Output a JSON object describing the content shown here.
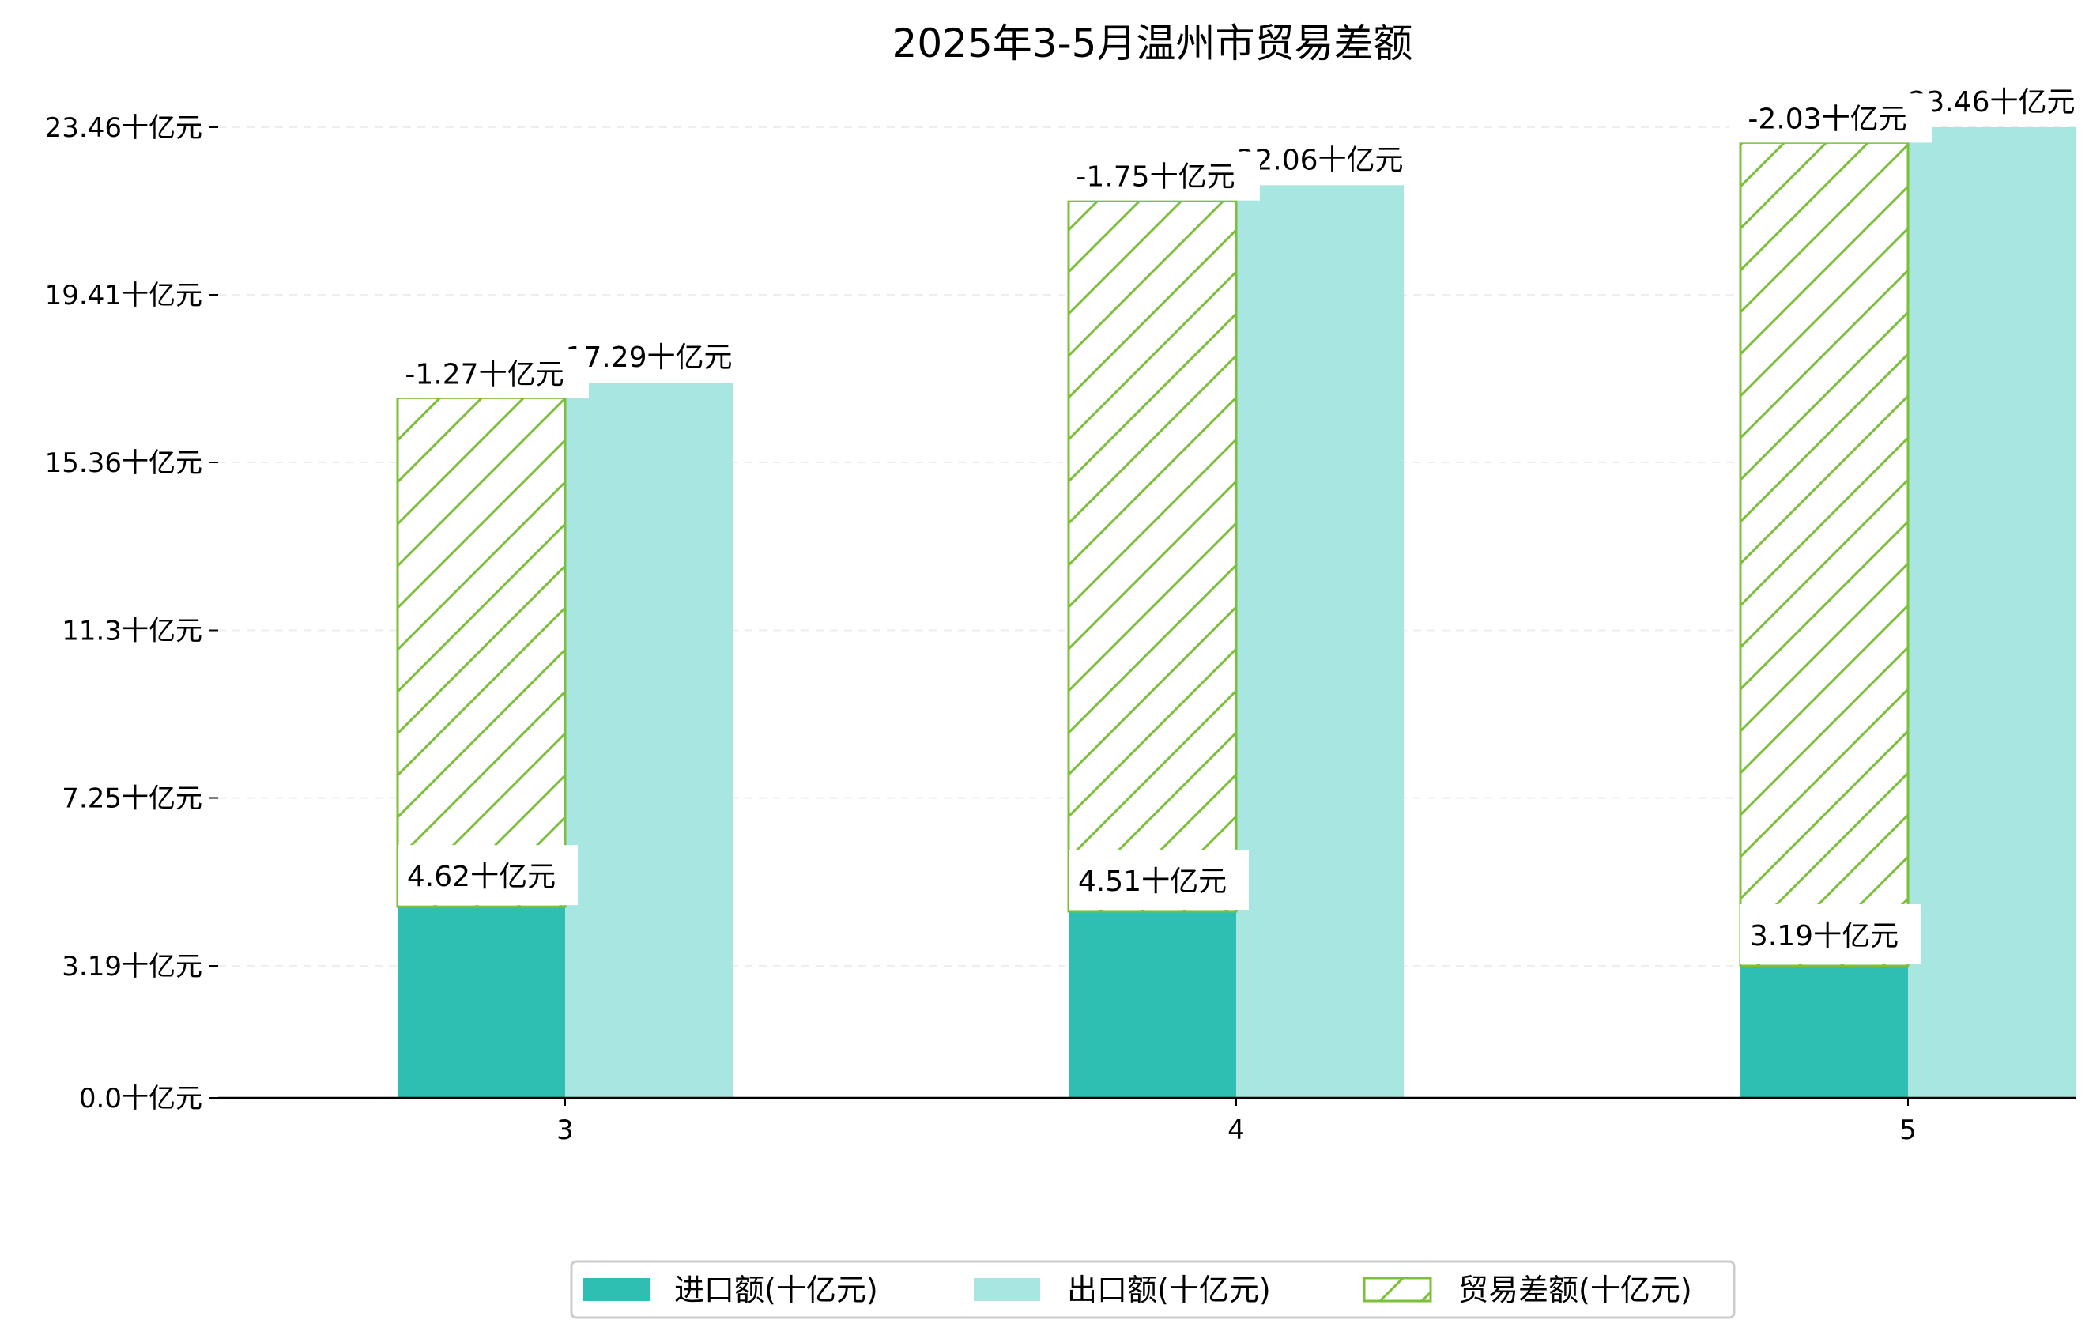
{
  "chart_data": {
    "type": "bar",
    "title": "2025年3-5月温州市贸易差额",
    "xlabel": "",
    "ylabel": "",
    "categories": [
      "3",
      "4",
      "5"
    ],
    "ylim": [
      0,
      23.46
    ],
    "yticks": [
      "0.0十亿元",
      "3.19十亿元",
      "7.25十亿元",
      "11.3十亿元",
      "15.36十亿元",
      "19.41十亿元",
      "23.46十亿元"
    ],
    "ytick_values": [
      0,
      3.19,
      7.25,
      11.3,
      15.36,
      19.41,
      23.46
    ],
    "grid": true,
    "legend_position": "bottom-center",
    "series": [
      {
        "name": "进口额(十亿元)",
        "values": [
          4.62,
          4.51,
          3.19
        ],
        "labels": [
          "4.62十亿元",
          "4.51十亿元",
          "3.19十亿元"
        ],
        "color": "#2ebfb2"
      },
      {
        "name": "出口额(十亿元)",
        "values": [
          17.29,
          22.06,
          23.46
        ],
        "labels": [
          "17.29十亿元",
          "22.06十亿元",
          "23.46十亿元"
        ],
        "color": "#a8e6e1"
      },
      {
        "name": "贸易差额(十亿元)",
        "values": [
          -1.27,
          -1.75,
          -2.03
        ],
        "labels": [
          "-1.27十亿元",
          "-1.75十亿元",
          "-2.03十亿元"
        ],
        "color": "#7bbf3a"
      }
    ]
  }
}
